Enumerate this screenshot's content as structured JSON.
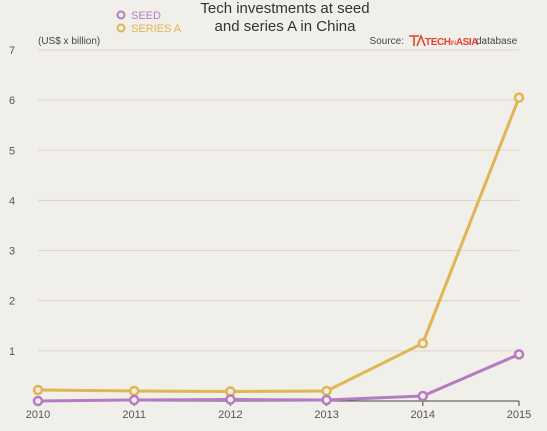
{
  "chart_data": {
    "type": "line",
    "title_lines": [
      "Tech investments at seed",
      "and series A in China"
    ],
    "unit_label": "(US$ x billion)",
    "source": {
      "prefix": "Source:",
      "brand_tech": "TECH",
      "brand_in": "IN",
      "brand_asia": "ASIA",
      "suffix": "database"
    },
    "x": [
      "2010",
      "2011",
      "2012",
      "2013",
      "2014",
      "2015"
    ],
    "series": [
      {
        "name": "SEED",
        "color": "#b57cc4",
        "values": [
          0.0,
          0.02,
          0.03,
          0.02,
          0.1,
          0.93
        ]
      },
      {
        "name": "SERIES A",
        "color": "#e0b552",
        "values": [
          0.22,
          0.2,
          0.19,
          0.2,
          1.15,
          6.05
        ]
      }
    ],
    "ylim": [
      0,
      7
    ],
    "yticks": [
      "1",
      "2",
      "3",
      "4",
      "5",
      "6",
      "7"
    ],
    "grid": true,
    "legend_position": "top-left",
    "brand_color": "#e8412e"
  }
}
